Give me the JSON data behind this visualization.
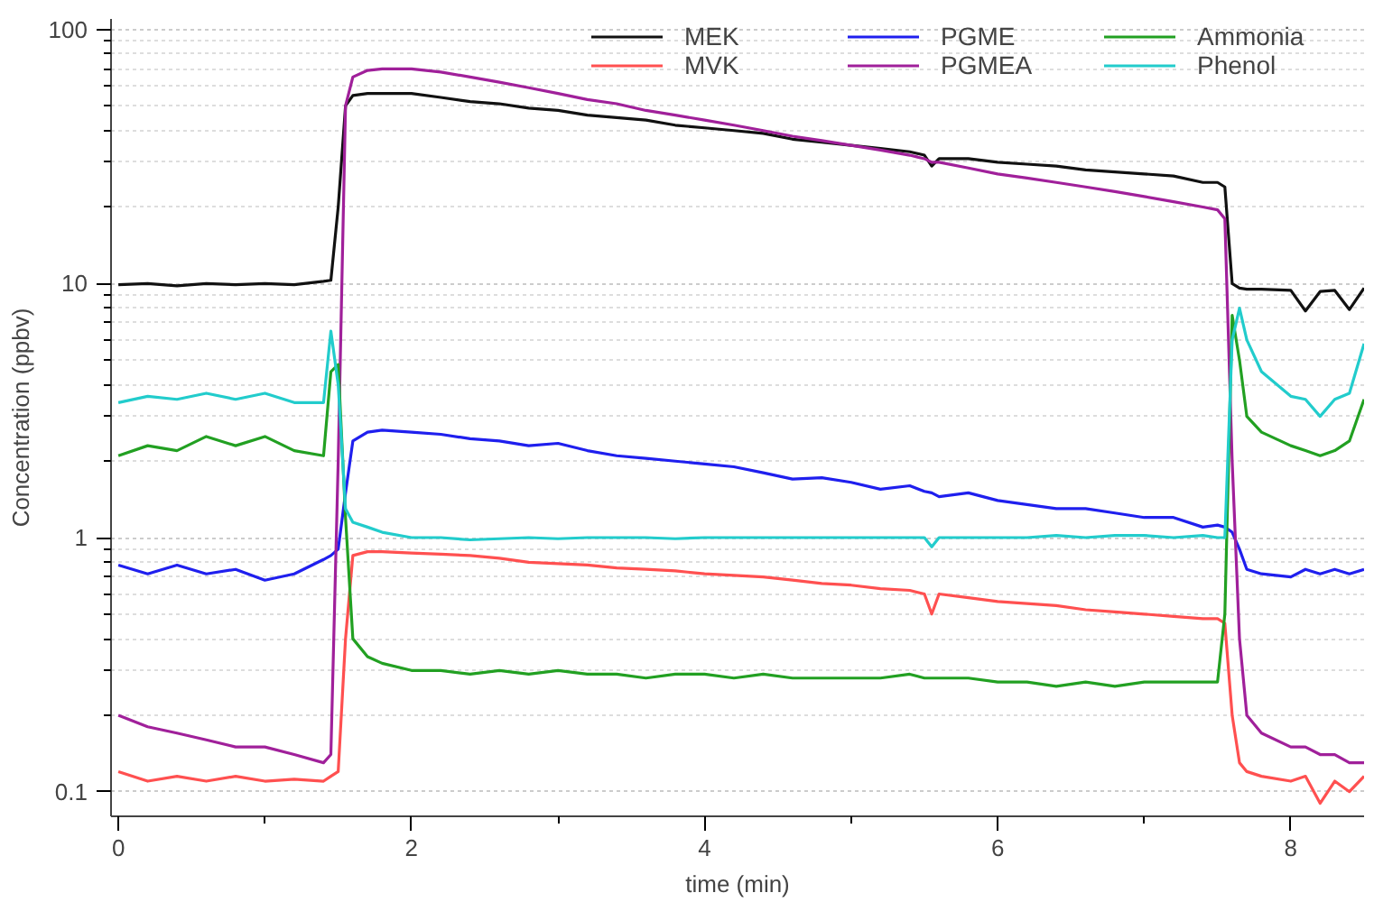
{
  "chart_data": {
    "type": "line",
    "xlabel": "time (min)",
    "ylabel": "Concentration (ppbv)",
    "log": "y",
    "grid": "y",
    "legend": "top right",
    "line_style": "solid",
    "marker": "none",
    "xlim": [
      -0.05,
      8.5
    ],
    "ylim": [
      0.08,
      110
    ],
    "xticks": [
      0,
      {
        "value": 1,
        "label": null
      },
      2,
      {
        "value": 3,
        "label": null
      },
      4,
      {
        "value": 5,
        "label": null
      },
      6,
      {
        "value": 7,
        "label": null
      },
      8
    ],
    "yticks": [
      0.1,
      {
        "value": 0.2,
        "label": null
      },
      {
        "value": 0.3,
        "label": null
      },
      {
        "value": 0.4,
        "label": null
      },
      {
        "value": 0.5,
        "label": null
      },
      {
        "value": 0.6,
        "label": null
      },
      {
        "value": 0.7,
        "label": null
      },
      {
        "value": 0.8,
        "label": null
      },
      {
        "value": 0.9,
        "label": null
      },
      1,
      {
        "value": 2,
        "label": null
      },
      {
        "value": 3,
        "label": null
      },
      {
        "value": 4,
        "label": null
      },
      {
        "value": 5,
        "label": null
      },
      {
        "value": 6,
        "label": null
      },
      {
        "value": 7,
        "label": null
      },
      {
        "value": 8,
        "label": null
      },
      {
        "value": 9,
        "label": null
      },
      10,
      {
        "value": 20,
        "label": null
      },
      {
        "value": 30,
        "label": null
      },
      {
        "value": 40,
        "label": null
      },
      {
        "value": 50,
        "label": null
      },
      {
        "value": 60,
        "label": null
      },
      {
        "value": 70,
        "label": null
      },
      {
        "value": 80,
        "label": null
      },
      {
        "value": 90,
        "label": null
      },
      100
    ],
    "x": [
      0,
      0.2,
      0.4,
      0.6,
      0.8,
      1.0,
      1.2,
      1.4,
      1.45,
      1.5,
      1.55,
      1.6,
      1.7,
      1.8,
      2.0,
      2.2,
      2.4,
      2.6,
      2.8,
      3.0,
      3.2,
      3.4,
      3.6,
      3.8,
      4.0,
      4.2,
      4.4,
      4.6,
      4.8,
      5.0,
      5.2,
      5.4,
      5.5,
      5.55,
      5.6,
      5.8,
      6.0,
      6.2,
      6.4,
      6.6,
      6.8,
      7.0,
      7.2,
      7.4,
      7.5,
      7.55,
      7.6,
      7.65,
      7.7,
      7.8,
      8.0,
      8.1,
      8.2,
      8.3,
      8.4,
      8.5
    ],
    "series": [
      {
        "name": "MEK",
        "color": "#111111",
        "values": [
          9.9,
          10,
          9.8,
          10,
          9.9,
          10,
          9.9,
          10.2,
          10.3,
          20,
          50,
          55,
          56,
          56,
          56,
          54,
          52,
          51,
          49,
          48,
          46,
          45,
          44,
          42,
          41,
          40,
          39,
          37,
          36,
          35,
          34,
          33,
          32,
          29,
          31,
          31,
          30,
          29.5,
          29,
          28,
          27.5,
          27,
          26.5,
          25,
          25,
          24,
          10,
          9.6,
          9.5,
          9.5,
          9.4,
          7.8,
          9.3,
          9.4,
          7.9,
          9.6
        ]
      },
      {
        "name": "MVK",
        "color": "#ff5050",
        "values": [
          0.12,
          0.11,
          0.115,
          0.11,
          0.115,
          0.11,
          0.112,
          0.11,
          0.115,
          0.12,
          0.4,
          0.85,
          0.88,
          0.88,
          0.87,
          0.86,
          0.85,
          0.83,
          0.8,
          0.79,
          0.78,
          0.76,
          0.75,
          0.74,
          0.72,
          0.71,
          0.7,
          0.68,
          0.66,
          0.65,
          0.63,
          0.62,
          0.6,
          0.5,
          0.6,
          0.58,
          0.56,
          0.55,
          0.54,
          0.52,
          0.51,
          0.5,
          0.49,
          0.48,
          0.48,
          0.46,
          0.2,
          0.13,
          0.12,
          0.115,
          0.11,
          0.115,
          0.09,
          0.11,
          0.1,
          0.115
        ]
      },
      {
        "name": "PGME",
        "color": "#1f1fee",
        "values": [
          0.78,
          0.72,
          0.78,
          0.72,
          0.75,
          0.68,
          0.72,
          0.82,
          0.85,
          0.9,
          1.5,
          2.4,
          2.6,
          2.65,
          2.6,
          2.55,
          2.45,
          2.4,
          2.3,
          2.35,
          2.2,
          2.1,
          2.05,
          2.0,
          1.95,
          1.9,
          1.8,
          1.7,
          1.72,
          1.65,
          1.55,
          1.6,
          1.52,
          1.5,
          1.45,
          1.5,
          1.4,
          1.35,
          1.3,
          1.3,
          1.25,
          1.2,
          1.2,
          1.1,
          1.12,
          1.1,
          1.05,
          0.9,
          0.75,
          0.72,
          0.7,
          0.75,
          0.72,
          0.75,
          0.72,
          0.75
        ]
      },
      {
        "name": "PGMEA",
        "color": "#a0209a",
        "values": [
          0.2,
          0.18,
          0.17,
          0.16,
          0.15,
          0.15,
          0.14,
          0.13,
          0.14,
          2,
          50,
          65,
          69,
          70,
          70,
          68,
          65,
          62,
          59,
          56,
          53,
          51,
          48,
          46,
          44,
          42,
          40,
          38,
          36.5,
          35,
          33.5,
          32,
          31,
          30,
          30,
          28.5,
          27,
          26,
          25,
          24,
          23,
          22,
          21,
          20,
          19.5,
          18,
          2,
          0.4,
          0.2,
          0.17,
          0.15,
          0.15,
          0.14,
          0.14,
          0.13,
          0.13
        ]
      },
      {
        "name": "Ammonia",
        "color": "#22a022",
        "values": [
          2.1,
          2.3,
          2.2,
          2.5,
          2.3,
          2.5,
          2.2,
          2.1,
          4.5,
          4.8,
          1.2,
          0.4,
          0.34,
          0.32,
          0.3,
          0.3,
          0.29,
          0.3,
          0.29,
          0.3,
          0.29,
          0.29,
          0.28,
          0.29,
          0.29,
          0.28,
          0.29,
          0.28,
          0.28,
          0.28,
          0.28,
          0.29,
          0.28,
          0.28,
          0.28,
          0.28,
          0.27,
          0.27,
          0.26,
          0.27,
          0.26,
          0.27,
          0.27,
          0.27,
          0.27,
          0.5,
          7.5,
          5,
          3,
          2.6,
          2.3,
          2.2,
          2.1,
          2.2,
          2.4,
          3.5
        ]
      },
      {
        "name": "Phenol",
        "color": "#22cccc",
        "values": [
          3.4,
          3.6,
          3.5,
          3.7,
          3.5,
          3.7,
          3.4,
          3.4,
          6.5,
          4,
          1.3,
          1.15,
          1.1,
          1.05,
          1.0,
          1.0,
          0.98,
          0.99,
          1.0,
          0.99,
          1.0,
          1.0,
          1.0,
          0.99,
          1.0,
          1.0,
          1.0,
          1.0,
          1.0,
          1.0,
          1.0,
          1.0,
          1.0,
          0.92,
          1.0,
          1.0,
          1.0,
          1.0,
          1.02,
          1.0,
          1.02,
          1.02,
          1.0,
          1.02,
          1.0,
          1.0,
          6,
          8,
          6,
          4.5,
          3.6,
          3.5,
          3.0,
          3.5,
          3.7,
          5.8
        ]
      }
    ]
  }
}
